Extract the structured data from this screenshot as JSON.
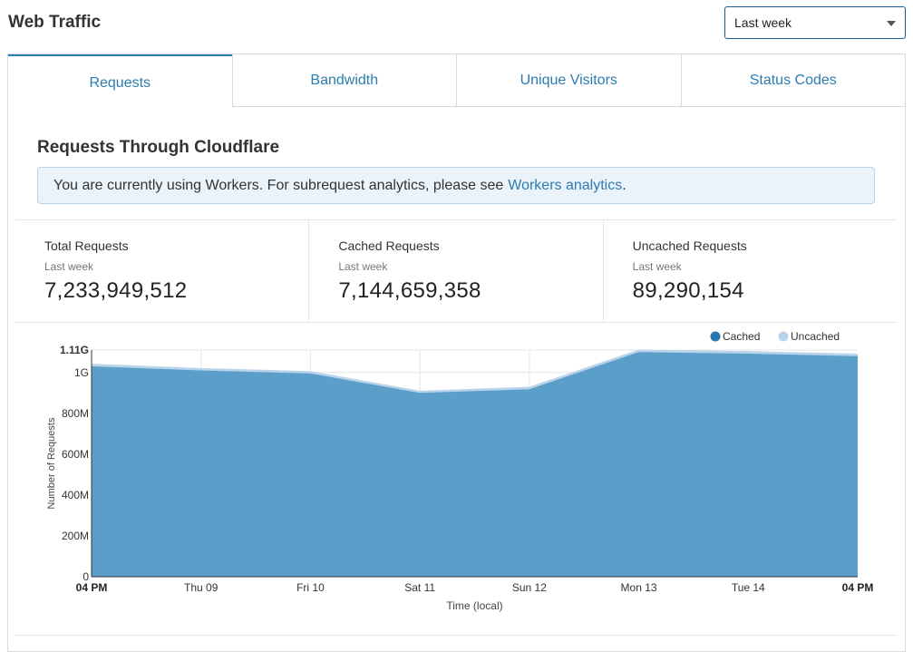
{
  "header": {
    "title": "Web Traffic",
    "range_select": {
      "value": "Last week"
    }
  },
  "tabs": [
    {
      "label": "Requests",
      "active": true
    },
    {
      "label": "Bandwidth",
      "active": false
    },
    {
      "label": "Unique Visitors",
      "active": false
    },
    {
      "label": "Status Codes",
      "active": false
    }
  ],
  "section": {
    "title": "Requests Through Cloudflare",
    "notice_text": "You are currently using Workers. For subrequest analytics, please see",
    "notice_link": "Workers analytics",
    "notice_end": "."
  },
  "stats": [
    {
      "label": "Total Requests",
      "period": "Last week",
      "value": "7,233,949,512"
    },
    {
      "label": "Cached Requests",
      "period": "Last week",
      "value": "7,144,659,358"
    },
    {
      "label": "Uncached Requests",
      "period": "Last week",
      "value": "89,290,154"
    }
  ],
  "colors": {
    "accent": "#2c7cb0",
    "cached": "#5b9ec9",
    "uncached": "#b9d3ea"
  },
  "chart_data": {
    "type": "area",
    "stacked": true,
    "xlabel": "Time (local)",
    "ylabel": "Number of Requests",
    "ylim": [
      0,
      1110000000
    ],
    "y_ticks": [
      {
        "value": 0,
        "label": "0"
      },
      {
        "value": 200000000,
        "label": "200M"
      },
      {
        "value": 400000000,
        "label": "400M"
      },
      {
        "value": 600000000,
        "label": "600M"
      },
      {
        "value": 800000000,
        "label": "800M"
      },
      {
        "value": 1000000000,
        "label": "1G"
      },
      {
        "value": 1110000000,
        "label": "1.11G"
      }
    ],
    "x_start_label": "04 PM",
    "x_end_label": "04 PM",
    "x_tick_labels": [
      "Thu 09",
      "Fri 10",
      "Sat 11",
      "Sun 12",
      "Mon 13",
      "Tue 14"
    ],
    "x": [
      "Wed 08 04 PM",
      "Thu 09",
      "Fri 10",
      "Sat 11",
      "Sun 12",
      "Mon 13",
      "Tue 14",
      "Wed 15 04 PM"
    ],
    "legend_position": "top-right",
    "series": [
      {
        "name": "Cached",
        "values": [
          1030000000,
          1010000000,
          995000000,
          900000000,
          918000000,
          1100000000,
          1092000000,
          1080000000
        ]
      },
      {
        "name": "Uncached",
        "values": [
          13000000,
          12000000,
          12000000,
          11000000,
          12000000,
          12000000,
          13000000,
          12000000
        ]
      }
    ]
  }
}
